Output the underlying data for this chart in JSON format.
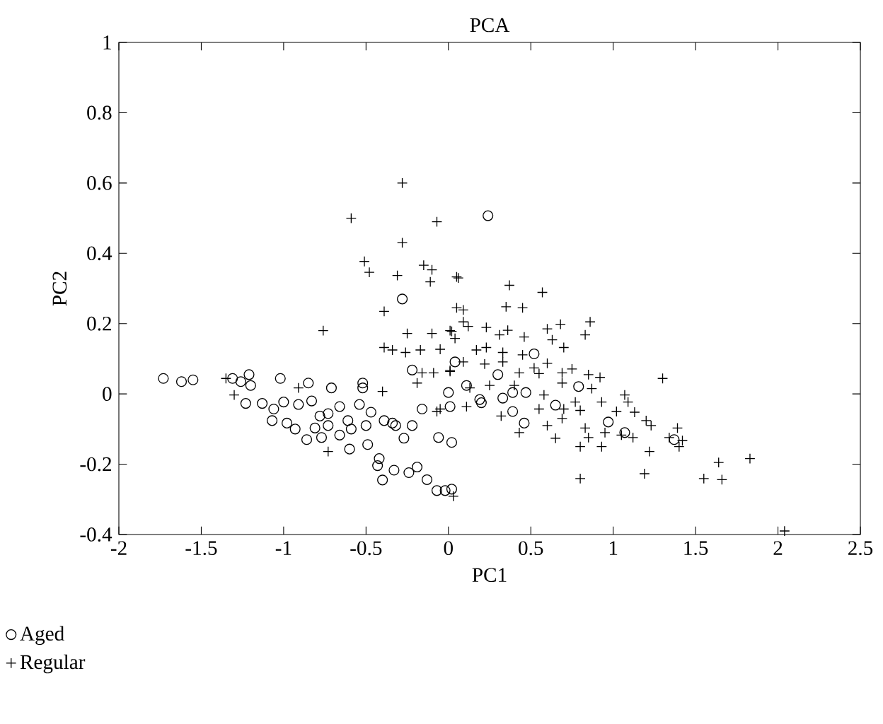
{
  "chart_data": {
    "type": "scatter",
    "title": "PCA",
    "xlabel": "PC1",
    "ylabel": "PC2",
    "xlim": [
      -2,
      2.5
    ],
    "ylim": [
      -0.4,
      1
    ],
    "xticks": [
      -2,
      -1.5,
      -1,
      -0.5,
      0,
      0.5,
      1,
      1.5,
      2,
      2.5
    ],
    "yticks": [
      -0.4,
      -0.2,
      0,
      0.2,
      0.4,
      0.6,
      0.8,
      1
    ],
    "grid": false,
    "legend": "bottom left",
    "series": [
      {
        "name": "Aged",
        "color": "#000000",
        "marker": "circle",
        "x": [
          -1.73,
          -1.62,
          -1.55,
          -1.31,
          -1.26,
          -1.21,
          -1.2,
          -1.23,
          -1.13,
          -1.02,
          -1.06,
          -1.07,
          -1.0,
          -0.98,
          -0.91,
          -0.85,
          -0.83,
          -0.93,
          -0.86,
          -0.81,
          -0.78,
          -0.73,
          -0.71,
          -0.77,
          -0.73,
          -0.66,
          -0.66,
          -0.61,
          -0.59,
          -0.6,
          -0.54,
          -0.52,
          -0.52,
          -0.5,
          -0.47,
          -0.49,
          -0.42,
          -0.43,
          -0.4,
          -0.39,
          -0.34,
          -0.32,
          -0.27,
          -0.33,
          -0.24,
          -0.19,
          -0.28,
          -0.22,
          -0.22,
          -0.16,
          -0.13,
          -0.07,
          -0.02,
          0.02,
          -0.06,
          0.02,
          0.0,
          0.01,
          0.04,
          0.24,
          0.3,
          0.11,
          0.19,
          0.2,
          0.33,
          0.39,
          0.39,
          0.46,
          0.52,
          0.47,
          0.65,
          0.79,
          0.97,
          1.07,
          1.37
        ],
        "values": [
          0.044,
          0.035,
          0.04,
          0.044,
          0.035,
          0.055,
          0.024,
          -0.027,
          -0.027,
          0.044,
          -0.043,
          -0.076,
          -0.023,
          -0.083,
          -0.03,
          0.031,
          -0.02,
          -0.1,
          -0.13,
          -0.097,
          -0.063,
          -0.056,
          0.017,
          -0.124,
          -0.09,
          -0.117,
          -0.036,
          -0.076,
          -0.1,
          -0.157,
          -0.03,
          0.031,
          0.017,
          -0.09,
          -0.052,
          -0.144,
          -0.184,
          -0.204,
          -0.245,
          -0.076,
          -0.083,
          -0.09,
          -0.126,
          -0.217,
          -0.224,
          -0.208,
          0.27,
          0.068,
          -0.09,
          -0.043,
          -0.244,
          -0.275,
          -0.275,
          -0.271,
          -0.124,
          -0.138,
          0.004,
          -0.036,
          0.091,
          0.507,
          0.055,
          0.024,
          -0.016,
          -0.025,
          -0.012,
          0.004,
          -0.05,
          -0.083,
          0.114,
          0.004,
          -0.032,
          0.021,
          -0.08,
          -0.11,
          -0.13
        ]
      },
      {
        "name": "Regular",
        "color": "#000000",
        "marker": "cross",
        "x": [
          -0.28,
          -0.59,
          -0.07,
          -0.28,
          -0.51,
          -0.48,
          -0.31,
          -0.15,
          -0.1,
          -0.11,
          0.05,
          -0.39,
          -0.76,
          -0.25,
          -0.1,
          0.01,
          -0.39,
          -0.34,
          -0.26,
          -0.17,
          -0.05,
          -0.16,
          -0.09,
          -0.19,
          0.01,
          -1.35,
          -1.3,
          -0.91,
          -0.4,
          -0.73,
          -0.05,
          0.03,
          0.05,
          0.06,
          0.37,
          0.57,
          0.35,
          0.45,
          0.09,
          0.09,
          0.12,
          0.23,
          0.36,
          0.6,
          0.68,
          0.86,
          0.83,
          0.02,
          0.04,
          0.31,
          0.46,
          0.63,
          0.7,
          0.17,
          0.23,
          0.33,
          0.45,
          0.6,
          0.09,
          0.22,
          0.33,
          0.52,
          0.01,
          0.43,
          0.55,
          0.69,
          0.75,
          0.85,
          0.92,
          1.3,
          0.25,
          0.4,
          0.13,
          0.58,
          0.69,
          0.87,
          1.07,
          1.09,
          0.77,
          0.93,
          -0.07,
          0.11,
          0.32,
          0.55,
          0.7,
          0.8,
          1.02,
          1.13,
          1.2,
          1.23,
          1.39,
          0.6,
          0.69,
          0.83,
          0.95,
          1.05,
          1.12,
          0.43,
          0.65,
          0.85,
          1.34,
          1.42,
          0.8,
          0.93,
          1.4,
          1.22,
          1.64,
          1.83,
          0.8,
          1.19,
          1.55,
          1.66,
          2.04
        ],
        "values": [
          0.6,
          0.5,
          0.49,
          0.43,
          0.377,
          0.346,
          0.337,
          0.366,
          0.353,
          0.319,
          0.333,
          0.235,
          0.18,
          0.172,
          0.172,
          0.18,
          0.132,
          0.125,
          0.118,
          0.125,
          0.127,
          0.06,
          0.06,
          0.031,
          0.067,
          0.044,
          -0.003,
          0.017,
          0.007,
          -0.164,
          -0.043,
          -0.291,
          0.245,
          0.33,
          0.309,
          0.289,
          0.248,
          0.245,
          0.239,
          0.205,
          0.192,
          0.189,
          0.181,
          0.185,
          0.198,
          0.205,
          0.168,
          0.178,
          0.158,
          0.168,
          0.162,
          0.154,
          0.132,
          0.125,
          0.132,
          0.118,
          0.111,
          0.087,
          0.091,
          0.085,
          0.091,
          0.074,
          0.064,
          0.06,
          0.058,
          0.06,
          0.071,
          0.055,
          0.047,
          0.044,
          0.024,
          0.024,
          0.017,
          -0.003,
          0.031,
          0.015,
          -0.003,
          -0.023,
          -0.023,
          -0.023,
          -0.05,
          -0.036,
          -0.063,
          -0.043,
          -0.043,
          -0.047,
          -0.05,
          -0.052,
          -0.076,
          -0.09,
          -0.097,
          -0.09,
          -0.07,
          -0.097,
          -0.11,
          -0.117,
          -0.124,
          -0.11,
          -0.126,
          -0.124,
          -0.124,
          -0.133,
          -0.15,
          -0.15,
          -0.15,
          -0.164,
          -0.195,
          -0.184,
          -0.241,
          -0.227,
          -0.241,
          -0.244,
          -0.39
        ]
      }
    ]
  }
}
